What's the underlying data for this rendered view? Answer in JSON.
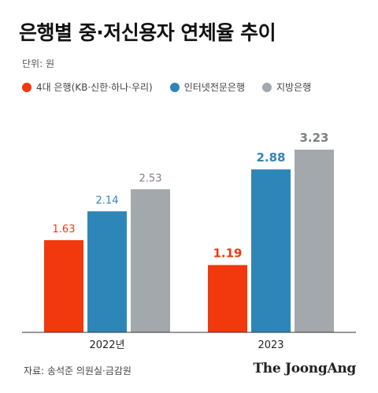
{
  "header": {
    "title": "은행별 중·저신용자 연체율 추이",
    "unit": "단위: 원"
  },
  "footer": {
    "source": "자료: 송석준 의원실·금감원",
    "logo": "The JoongAng"
  },
  "colors": {
    "series1": "#f2380d",
    "series2": "#2e86b8",
    "series3": "#a3a8ad",
    "label1": "#f2380d",
    "label2": "#2e86b8",
    "label3": "#7d8185"
  },
  "chart_data": {
    "type": "bar",
    "title": "은행별 중·저신용자 연체율 추이",
    "ylabel": "단위: 원",
    "categories": [
      "2022년",
      "2023"
    ],
    "series": [
      {
        "name": "4대 은행(KB·신한·하나·우리)",
        "values": [
          1.63,
          1.19
        ]
      },
      {
        "name": "인터넷전문은행",
        "values": [
          2.14,
          2.88
        ]
      },
      {
        "name": "지방은행",
        "values": [
          2.53,
          3.23
        ]
      }
    ],
    "value_labels": [
      [
        "1.63",
        "1.19"
      ],
      [
        "2.14",
        "2.88"
      ],
      [
        "2.53",
        "3.23"
      ]
    ],
    "ylim": [
      0,
      3.23
    ],
    "grid": false,
    "legend": "top-left"
  }
}
